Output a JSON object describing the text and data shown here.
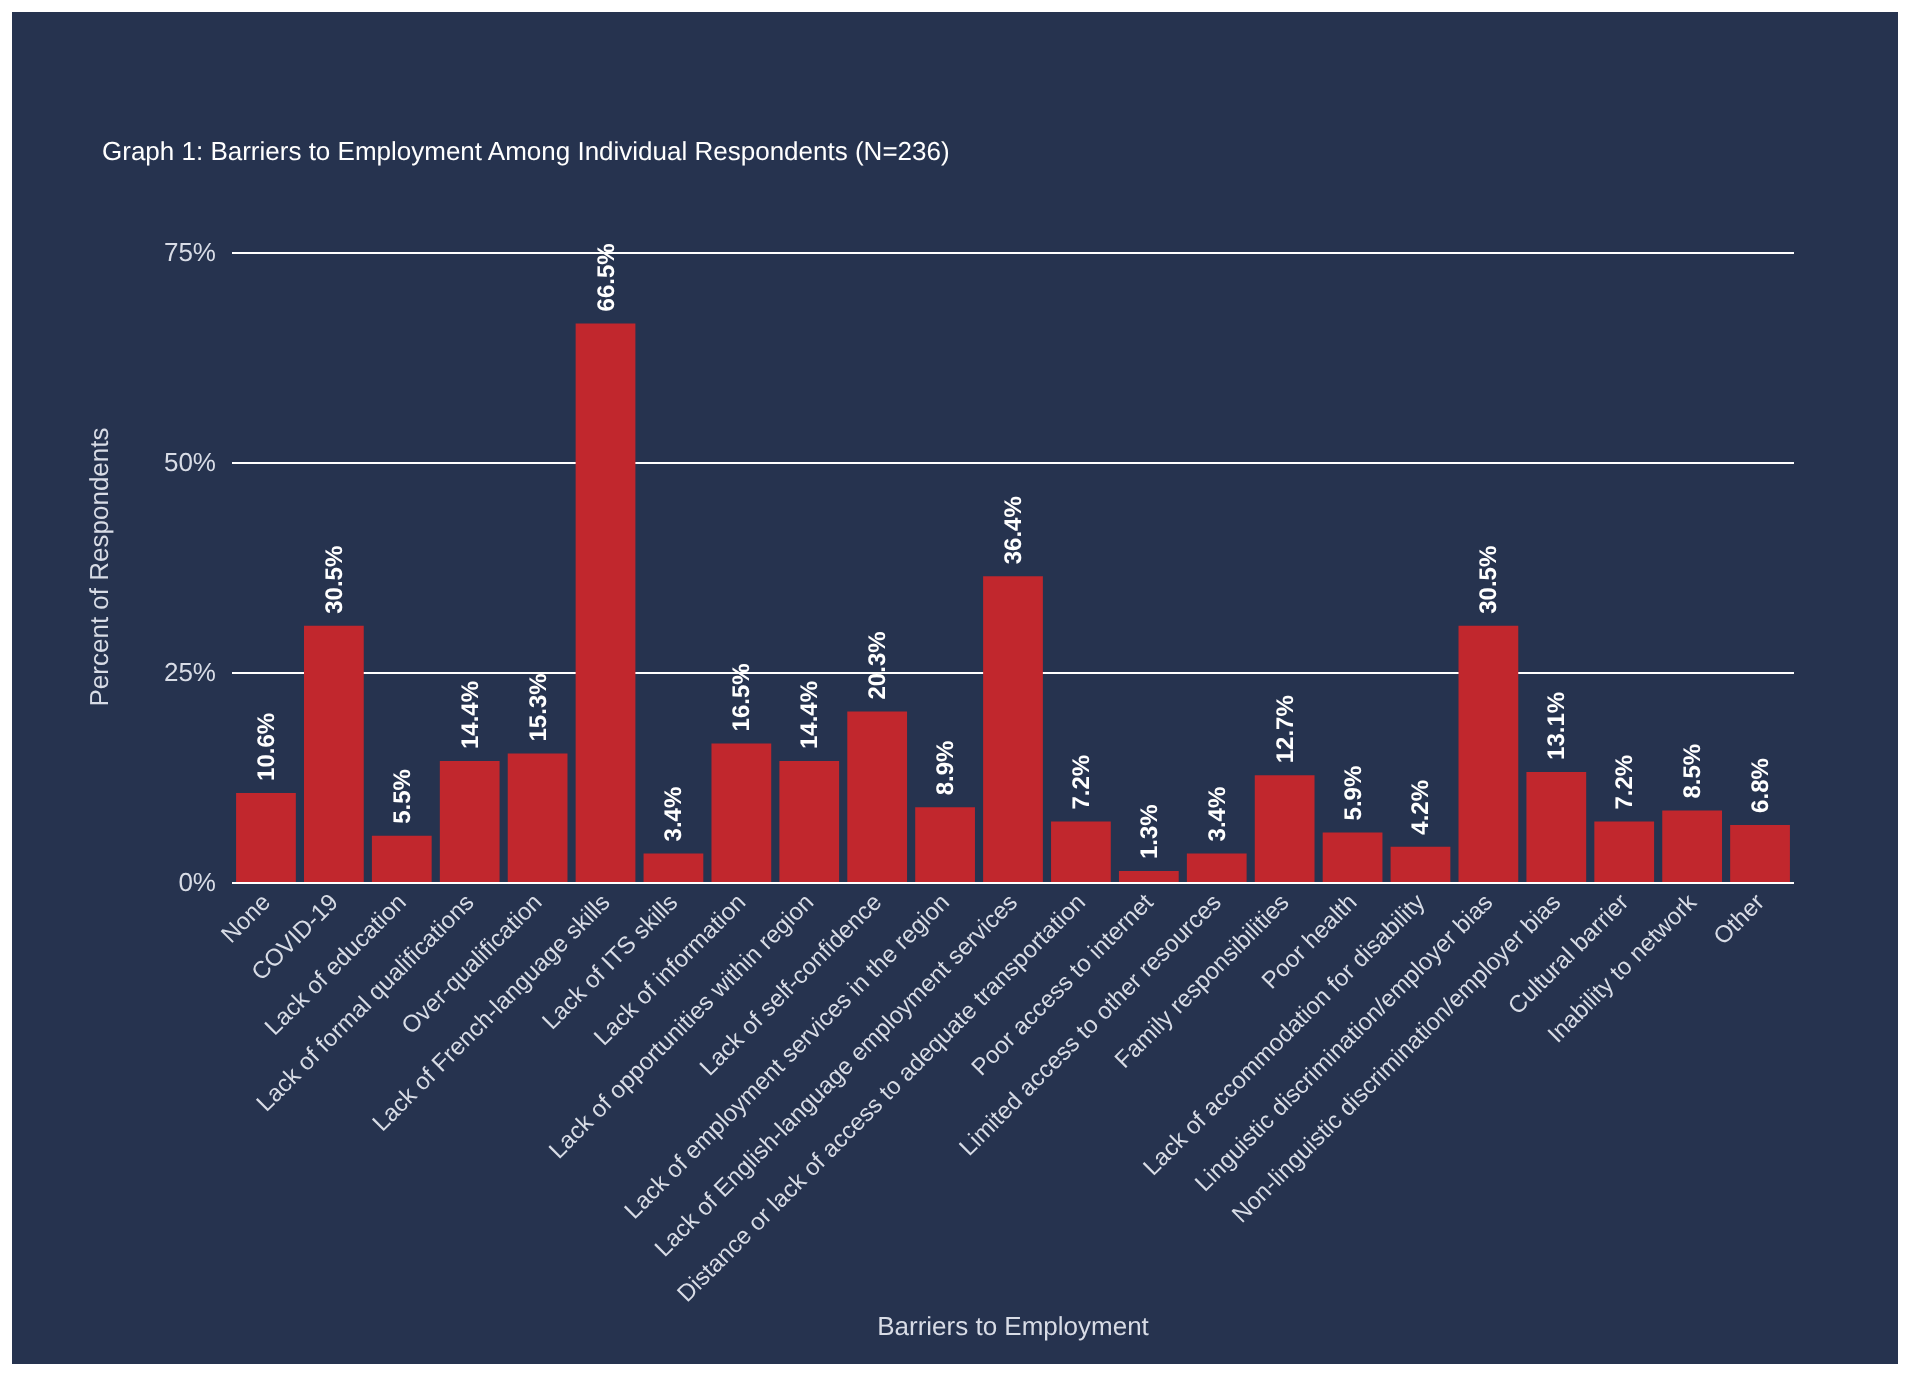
{
  "chart_data": {
    "type": "bar",
    "title": "Graph 1: Barriers to Employment Among Individual Respondents (N=236)",
    "xlabel": "Barriers to Employment",
    "ylabel": "Percent of Respondents",
    "categories": [
      "None",
      "COVID-19",
      "Lack of education",
      "Lack of formal qualifications",
      "Over-qualification",
      "Lack of French-language skills",
      "Lack of ITS skills",
      "Lack of information",
      "Lack of opportunities within region",
      "Lack of self-confidence",
      "Lack of employment services in the region",
      "Lack of English-language employment services",
      "Distance or lack of access to adequate transportation",
      "Poor access to internet",
      "Limited access to other resources",
      "Family responsibilities",
      "Poor health",
      "Lack of accommodation for disability",
      "Linguistic discrimination/employer bias",
      "Non-linguistic discrimination/employer bias",
      "Cultural barrier",
      "Inability to network",
      "Other"
    ],
    "values": [
      10.6,
      30.5,
      5.5,
      14.4,
      15.3,
      66.5,
      3.4,
      16.5,
      14.4,
      20.3,
      8.9,
      36.4,
      7.2,
      1.3,
      3.4,
      12.7,
      5.9,
      4.2,
      30.5,
      13.1,
      7.2,
      8.5,
      6.8
    ],
    "value_labels": [
      "10.6%",
      "30.5%",
      "5.5%",
      "14.4%",
      "15.3%",
      "66.5%",
      "3.4%",
      "16.5%",
      "14.4%",
      "20.3%",
      "8.9%",
      "36.4%",
      "7.2%",
      "1.3%",
      "3.4%",
      "12.7%",
      "5.9%",
      "4.2%",
      "30.5%",
      "13.1%",
      "7.2%",
      "8.5%",
      "6.8%"
    ],
    "color": "#c1272d",
    "ylim": [
      0,
      75
    ],
    "yticks": [
      {
        "value": 0,
        "label": "0%"
      },
      {
        "value": 25,
        "label": "25%"
      },
      {
        "value": 50,
        "label": "50%"
      },
      {
        "value": 75,
        "label": "75%"
      }
    ],
    "grid": "y"
  }
}
